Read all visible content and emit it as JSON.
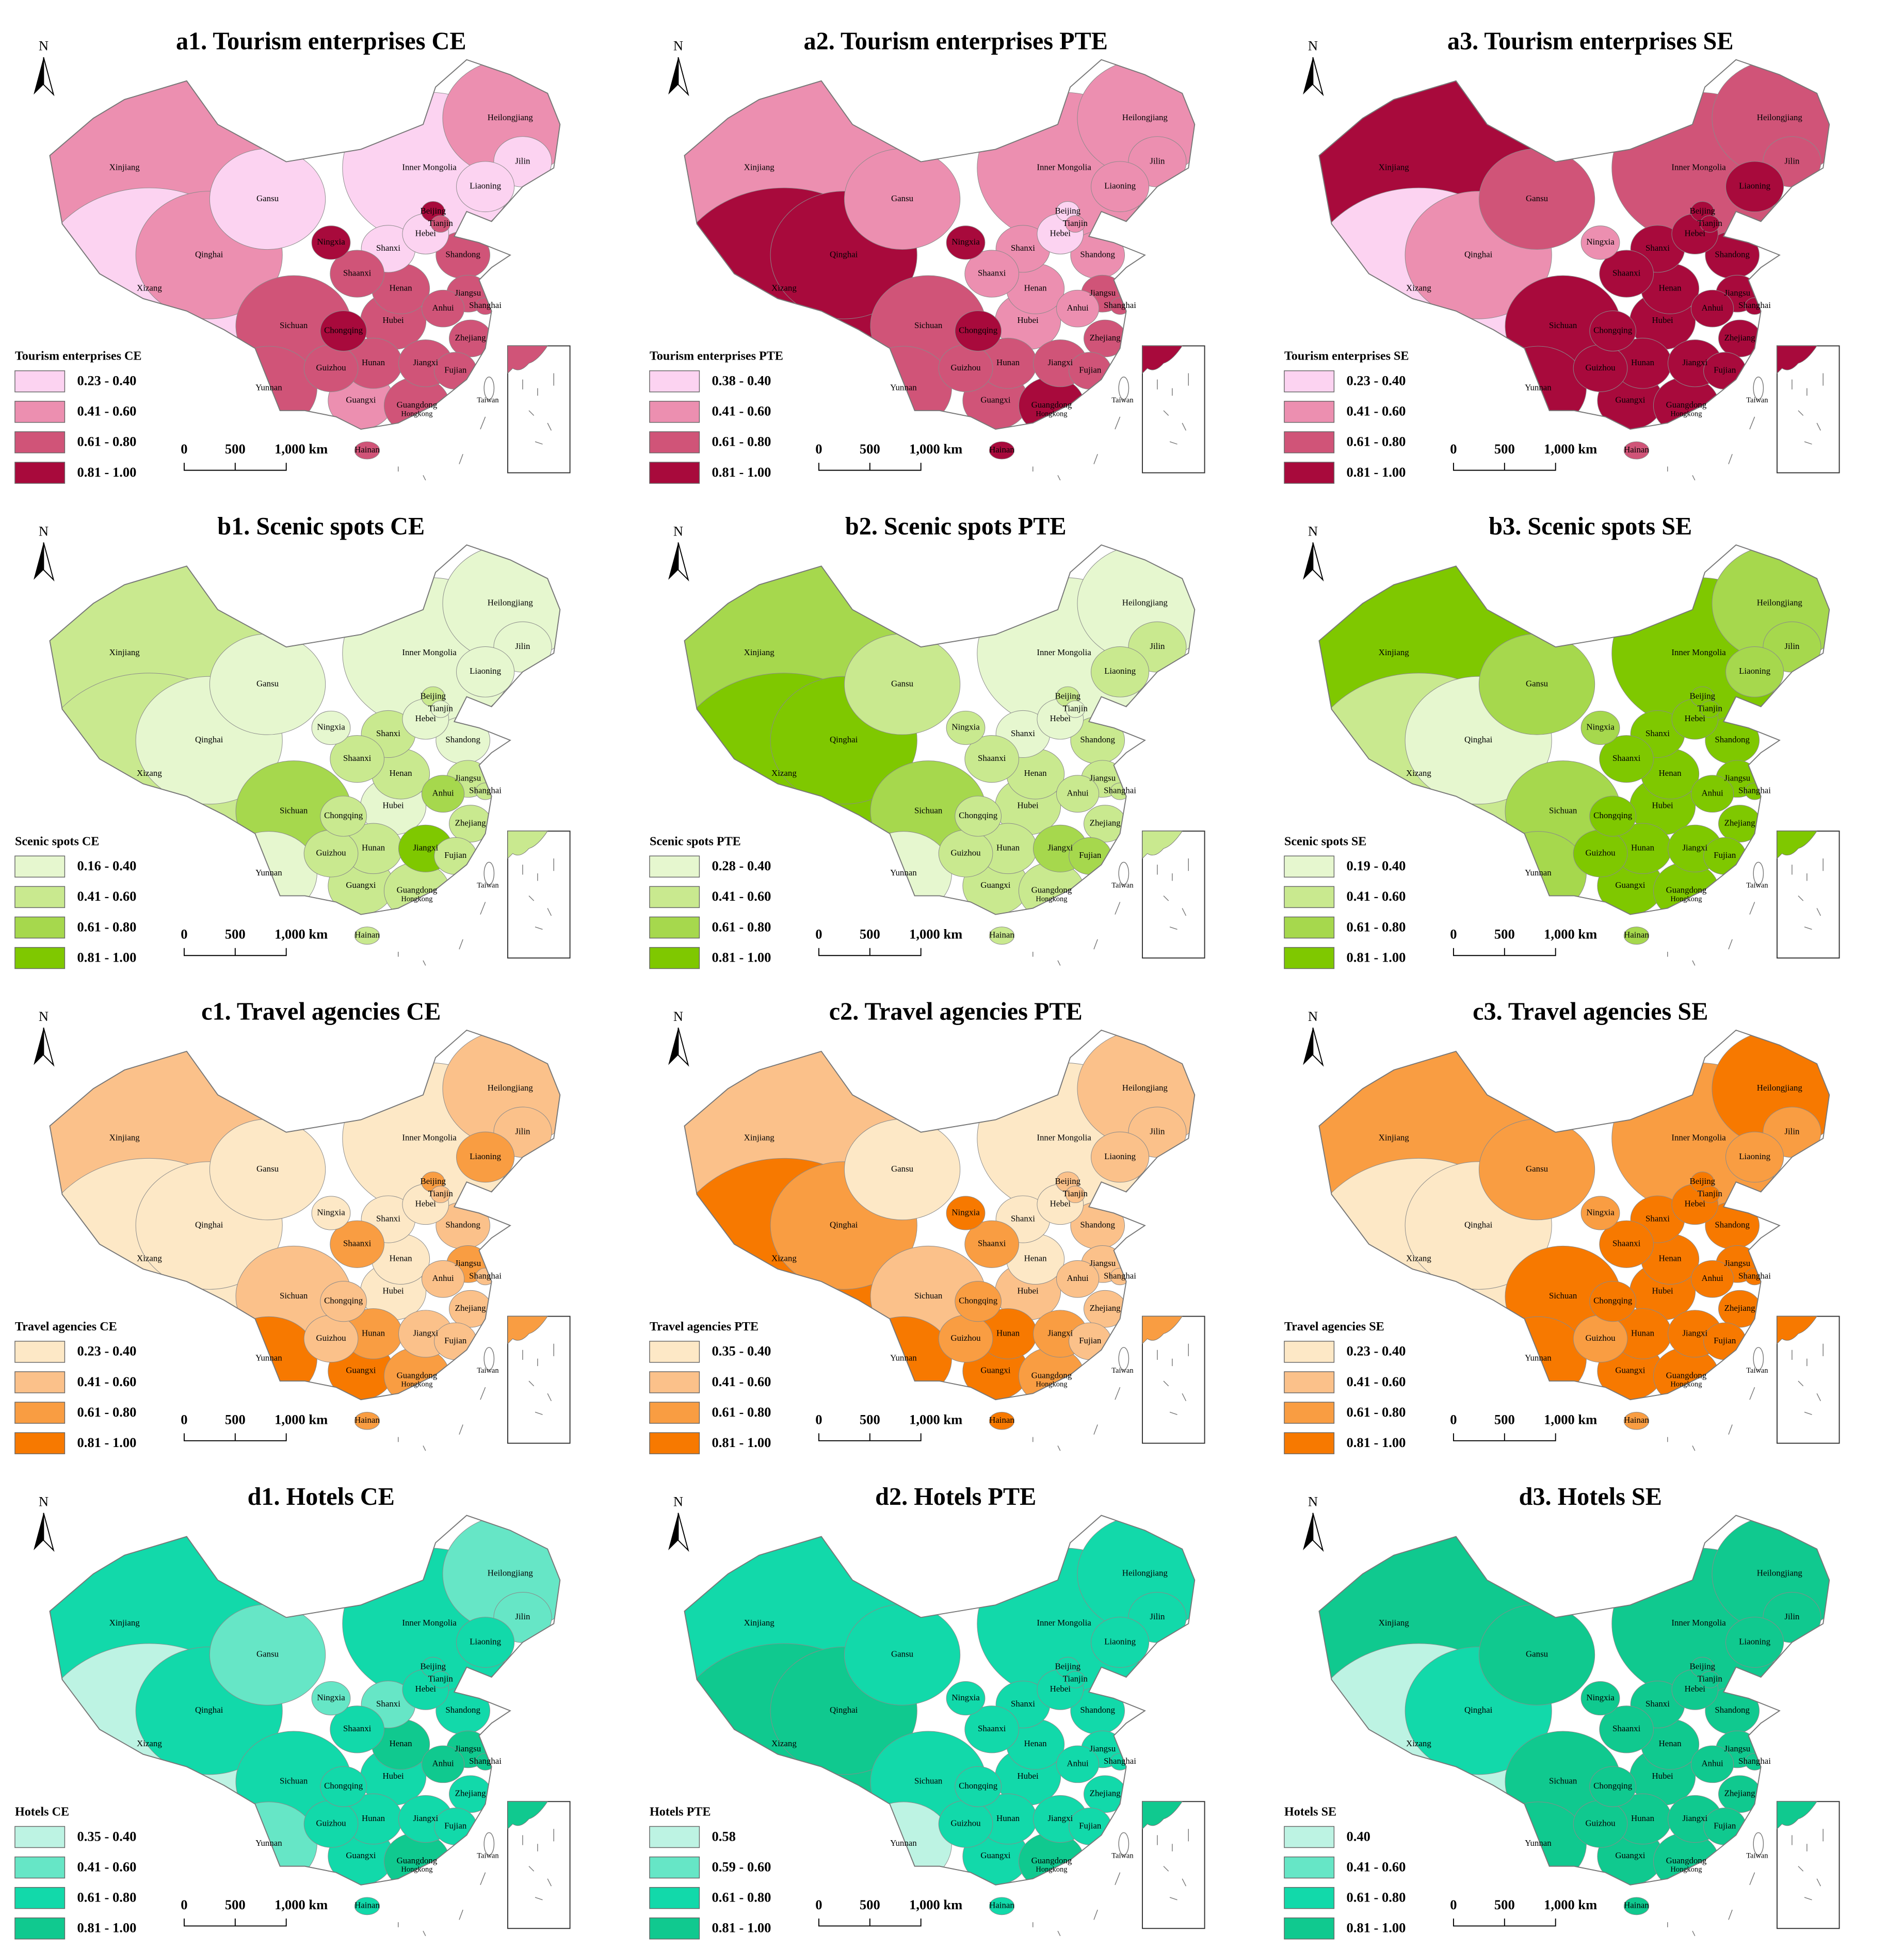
{
  "north": "N",
  "scale_labels": [
    "0",
    "500",
    "1,000 km"
  ],
  "provinces": [
    "Xinjiang",
    "Xizang",
    "Qinghai",
    "Gansu",
    "Inner Mongolia",
    "Heilongjiang",
    "Jilin",
    "Liaoning",
    "Beijing",
    "Tianjin",
    "Hebei",
    "Shanxi",
    "Shandong",
    "Ningxia",
    "Shaanxi",
    "Henan",
    "Jiangsu",
    "Shanghai",
    "Anhui",
    "Hubei",
    "Sichuan",
    "Chongqing",
    "Zhejiang",
    "Guizhou",
    "Hunan",
    "Jiangxi",
    "Fujian",
    "Yunnan",
    "Guangxi",
    "Guangdong",
    "Hainan"
  ],
  "other_labels": [
    "Hongkong",
    "Taiwan"
  ],
  "maps": [
    {
      "title": "a1. Tourism enterprises CE",
      "legend_title": "Tourism enterprises CE",
      "legend": [
        {
          "label": "0.23 - 0.40",
          "color": "#fcd3f1"
        },
        {
          "label": "0.41 - 0.60",
          "color": "#ec8fb0"
        },
        {
          "label": "0.61 - 0.80",
          "color": "#d05478"
        },
        {
          "label": "0.81 - 1.00",
          "color": "#a80a3c"
        }
      ],
      "province_colors": [
        "#ec8fb0",
        "#fcd3f1",
        "#ec8fb0",
        "#fcd3f1",
        "#fcd3f1",
        "#ec8fb0",
        "#fcd3f1",
        "#fcd3f1",
        "#a80a3c",
        "#d05478",
        "#fcd3f1",
        "#fcd3f1",
        "#d05478",
        "#a80a3c",
        "#d05478",
        "#d05478",
        "#d05478",
        "#d05478",
        "#d05478",
        "#d05478",
        "#d05478",
        "#a80a3c",
        "#d05478",
        "#d05478",
        "#d05478",
        "#d05478",
        "#d05478",
        "#d05478",
        "#ec8fb0",
        "#d05478",
        "#d05478"
      ]
    },
    {
      "title": "a2. Tourism enterprises PTE",
      "legend_title": "Tourism enterprises PTE",
      "legend": [
        {
          "label": "0.38 - 0.40",
          "color": "#fcd3f1"
        },
        {
          "label": "0.41 - 0.60",
          "color": "#ec8fb0"
        },
        {
          "label": "0.61 - 0.80",
          "color": "#d05478"
        },
        {
          "label": "0.81 - 1.00",
          "color": "#a80a3c"
        }
      ],
      "province_colors": [
        "#ec8fb0",
        "#a80a3c",
        "#a80a3c",
        "#ec8fb0",
        "#ec8fb0",
        "#ec8fb0",
        "#ec8fb0",
        "#ec8fb0",
        "#fcd3f1",
        "#ec8fb0",
        "#fcd3f1",
        "#ec8fb0",
        "#ec8fb0",
        "#a80a3c",
        "#ec8fb0",
        "#ec8fb0",
        "#d05478",
        "#d05478",
        "#ec8fb0",
        "#ec8fb0",
        "#d05478",
        "#a80a3c",
        "#d05478",
        "#d05478",
        "#d05478",
        "#d05478",
        "#d05478",
        "#d05478",
        "#d05478",
        "#a80a3c",
        "#a80a3c"
      ]
    },
    {
      "title": "a3. Tourism enterprises SE",
      "legend_title": "Tourism enterprises SE",
      "legend": [
        {
          "label": "0.23 - 0.40",
          "color": "#fcd3f1"
        },
        {
          "label": "0.41 - 0.60",
          "color": "#ec8fb0"
        },
        {
          "label": "0.61 - 0.80",
          "color": "#d05478"
        },
        {
          "label": "0.81 - 1.00",
          "color": "#a80a3c"
        }
      ],
      "province_colors": [
        "#a80a3c",
        "#fcd3f1",
        "#ec8fb0",
        "#d05478",
        "#d05478",
        "#d05478",
        "#d05478",
        "#a80a3c",
        "#a80a3c",
        "#a80a3c",
        "#a80a3c",
        "#a80a3c",
        "#a80a3c",
        "#ec8fb0",
        "#a80a3c",
        "#a80a3c",
        "#a80a3c",
        "#a80a3c",
        "#a80a3c",
        "#a80a3c",
        "#a80a3c",
        "#a80a3c",
        "#a80a3c",
        "#a80a3c",
        "#a80a3c",
        "#a80a3c",
        "#a80a3c",
        "#a80a3c",
        "#a80a3c",
        "#a80a3c",
        "#d05478"
      ]
    },
    {
      "title": "b1. Scenic spots CE",
      "legend_title": "Scenic spots  CE",
      "legend": [
        {
          "label": "0.16 - 0.40",
          "color": "#e6f7cf"
        },
        {
          "label": "0.41 - 0.60",
          "color": "#c9e98f"
        },
        {
          "label": "0.61 - 0.80",
          "color": "#a6d84d"
        },
        {
          "label": "0.81 - 1.00",
          "color": "#7fc800"
        }
      ],
      "province_colors": [
        "#c9e98f",
        "#c9e98f",
        "#e6f7cf",
        "#e6f7cf",
        "#e6f7cf",
        "#e6f7cf",
        "#e6f7cf",
        "#e6f7cf",
        "#c9e98f",
        "#e6f7cf",
        "#e6f7cf",
        "#c9e98f",
        "#e6f7cf",
        "#e6f7cf",
        "#c9e98f",
        "#c9e98f",
        "#c9e98f",
        "#c9e98f",
        "#a6d84d",
        "#e6f7cf",
        "#a6d84d",
        "#c9e98f",
        "#c9e98f",
        "#c9e98f",
        "#c9e98f",
        "#7fc800",
        "#c9e98f",
        "#e6f7cf",
        "#c9e98f",
        "#c9e98f",
        "#c9e98f"
      ]
    },
    {
      "title": "b2. Scenic spots PTE",
      "legend_title": "Scenic spots PTE",
      "legend": [
        {
          "label": "0.28 - 0.40",
          "color": "#e6f7cf"
        },
        {
          "label": "0.41 - 0.60",
          "color": "#c9e98f"
        },
        {
          "label": "0.61 - 0.80",
          "color": "#a6d84d"
        },
        {
          "label": "0.81 - 1.00",
          "color": "#7fc800"
        }
      ],
      "province_colors": [
        "#a6d84d",
        "#7fc800",
        "#7fc800",
        "#c9e98f",
        "#e6f7cf",
        "#e6f7cf",
        "#c9e98f",
        "#c9e98f",
        "#c9e98f",
        "#e6f7cf",
        "#e6f7cf",
        "#e6f7cf",
        "#c9e98f",
        "#c9e98f",
        "#c9e98f",
        "#c9e98f",
        "#c9e98f",
        "#c9e98f",
        "#c9e98f",
        "#c9e98f",
        "#a6d84d",
        "#c9e98f",
        "#c9e98f",
        "#c9e98f",
        "#c9e98f",
        "#a6d84d",
        "#a6d84d",
        "#e6f7cf",
        "#c9e98f",
        "#c9e98f",
        "#c9e98f"
      ]
    },
    {
      "title": "b3. Scenic spots SE",
      "legend_title": "Scenic spots SE",
      "legend": [
        {
          "label": "0.19 - 0.40",
          "color": "#e6f7cf"
        },
        {
          "label": "0.41 - 0.60",
          "color": "#c9e98f"
        },
        {
          "label": "0.61 - 0.80",
          "color": "#a6d84d"
        },
        {
          "label": "0.81 - 1.00",
          "color": "#7fc800"
        }
      ],
      "province_colors": [
        "#7fc800",
        "#c9e98f",
        "#e6f7cf",
        "#a6d84d",
        "#7fc800",
        "#a6d84d",
        "#a6d84d",
        "#a6d84d",
        "#7fc800",
        "#7fc800",
        "#7fc800",
        "#7fc800",
        "#7fc800",
        "#a6d84d",
        "#7fc800",
        "#7fc800",
        "#7fc800",
        "#7fc800",
        "#7fc800",
        "#7fc800",
        "#a6d84d",
        "#7fc800",
        "#7fc800",
        "#7fc800",
        "#7fc800",
        "#7fc800",
        "#7fc800",
        "#a6d84d",
        "#7fc800",
        "#7fc800",
        "#a6d84d"
      ]
    },
    {
      "title": "c1. Travel agencies CE",
      "legend_title": "Travel agencies CE",
      "legend": [
        {
          "label": "0.23 - 0.40",
          "color": "#fde8c6"
        },
        {
          "label": "0.41 - 0.60",
          "color": "#fbc18a"
        },
        {
          "label": "0.61 - 0.80",
          "color": "#f99d42"
        },
        {
          "label": "0.81 - 1.00",
          "color": "#f77900"
        }
      ],
      "province_colors": [
        "#fbc18a",
        "#fde8c6",
        "#fde8c6",
        "#fde8c6",
        "#fde8c6",
        "#fbc18a",
        "#fbc18a",
        "#f99d42",
        "#f99d42",
        "#fbc18a",
        "#fde8c6",
        "#fde8c6",
        "#fbc18a",
        "#fde8c6",
        "#f99d42",
        "#fde8c6",
        "#f99d42",
        "#fbc18a",
        "#fbc18a",
        "#fde8c6",
        "#fbc18a",
        "#fbc18a",
        "#fbc18a",
        "#fbc18a",
        "#f99d42",
        "#fbc18a",
        "#fbc18a",
        "#f77900",
        "#f77900",
        "#f99d42",
        "#f99d42"
      ]
    },
    {
      "title": "c2. Travel agencies PTE",
      "legend_title": "Travel agencies PTE",
      "legend": [
        {
          "label": "0.35 - 0.40",
          "color": "#fde8c6"
        },
        {
          "label": "0.41 - 0.60",
          "color": "#fbc18a"
        },
        {
          "label": "0.61 - 0.80",
          "color": "#f99d42"
        },
        {
          "label": "0.81 - 1.00",
          "color": "#f77900"
        }
      ],
      "province_colors": [
        "#fbc18a",
        "#f77900",
        "#f99d42",
        "#fde8c6",
        "#fde8c6",
        "#fbc18a",
        "#fbc18a",
        "#fbc18a",
        "#fbc18a",
        "#fbc18a",
        "#fde8c6",
        "#fde8c6",
        "#fbc18a",
        "#f77900",
        "#f99d42",
        "#fde8c6",
        "#fbc18a",
        "#fbc18a",
        "#fbc18a",
        "#fbc18a",
        "#fbc18a",
        "#f99d42",
        "#fbc18a",
        "#f99d42",
        "#f77900",
        "#f99d42",
        "#fbc18a",
        "#f77900",
        "#f77900",
        "#f99d42",
        "#f77900"
      ]
    },
    {
      "title": "c3. Travel agencies SE",
      "legend_title": "Travel agencies SE",
      "legend": [
        {
          "label": "0.23 - 0.40",
          "color": "#fde8c6"
        },
        {
          "label": "0.41 - 0.60",
          "color": "#fbc18a"
        },
        {
          "label": "0.61 - 0.80",
          "color": "#f99d42"
        },
        {
          "label": "0.81 - 1.00",
          "color": "#f77900"
        }
      ],
      "province_colors": [
        "#f99d42",
        "#fde8c6",
        "#fde8c6",
        "#f99d42",
        "#f99d42",
        "#f77900",
        "#f99d42",
        "#f99d42",
        "#f77900",
        "#f77900",
        "#f77900",
        "#f77900",
        "#f77900",
        "#f99d42",
        "#f77900",
        "#f77900",
        "#f77900",
        "#f77900",
        "#f77900",
        "#f77900",
        "#f77900",
        "#f77900",
        "#f77900",
        "#f99d42",
        "#f77900",
        "#f77900",
        "#f77900",
        "#f77900",
        "#f77900",
        "#f77900",
        "#f99d42"
      ]
    },
    {
      "title": "d1. Hotels CE",
      "legend_title": "Hotels CE",
      "legend": [
        {
          "label": "0.35 - 0.40",
          "color": "#bdf3e3"
        },
        {
          "label": "0.41 - 0.60",
          "color": "#66e6c6"
        },
        {
          "label": "0.61 - 0.80",
          "color": "#12d9aa"
        },
        {
          "label": "0.81 - 1.00",
          "color": "#10c98f"
        }
      ],
      "province_colors": [
        "#12d9aa",
        "#bdf3e3",
        "#12d9aa",
        "#66e6c6",
        "#12d9aa",
        "#66e6c6",
        "#66e6c6",
        "#12d9aa",
        "#12d9aa",
        "#12d9aa",
        "#12d9aa",
        "#66e6c6",
        "#12d9aa",
        "#66e6c6",
        "#12d9aa",
        "#10c98f",
        "#10c98f",
        "#10c98f",
        "#10c98f",
        "#12d9aa",
        "#12d9aa",
        "#12d9aa",
        "#12d9aa",
        "#12d9aa",
        "#12d9aa",
        "#12d9aa",
        "#12d9aa",
        "#66e6c6",
        "#12d9aa",
        "#10c98f",
        "#12d9aa"
      ]
    },
    {
      "title": "d2. Hotels PTE",
      "legend_title": "Hotels PTE",
      "legend": [
        {
          "label": "0.58",
          "color": "#bdf3e3"
        },
        {
          "label": "0.59 - 0.60",
          "color": "#66e6c6"
        },
        {
          "label": "0.61 - 0.80",
          "color": "#12d9aa"
        },
        {
          "label": "0.81 - 1.00",
          "color": "#10c98f"
        }
      ],
      "province_colors": [
        "#12d9aa",
        "#10c98f",
        "#10c98f",
        "#12d9aa",
        "#12d9aa",
        "#12d9aa",
        "#12d9aa",
        "#12d9aa",
        "#12d9aa",
        "#12d9aa",
        "#12d9aa",
        "#12d9aa",
        "#12d9aa",
        "#12d9aa",
        "#12d9aa",
        "#12d9aa",
        "#12d9aa",
        "#12d9aa",
        "#12d9aa",
        "#12d9aa",
        "#12d9aa",
        "#12d9aa",
        "#12d9aa",
        "#12d9aa",
        "#12d9aa",
        "#12d9aa",
        "#12d9aa",
        "#bdf3e3",
        "#12d9aa",
        "#10c98f",
        "#12d9aa"
      ]
    },
    {
      "title": "d3. Hotels SE",
      "legend_title": "Hotels SE",
      "legend": [
        {
          "label": "0.40",
          "color": "#bdf3e3"
        },
        {
          "label": "0.41 - 0.60",
          "color": "#66e6c6"
        },
        {
          "label": "0.61 - 0.80",
          "color": "#12d9aa"
        },
        {
          "label": "0.81 - 1.00",
          "color": "#10c98f"
        }
      ],
      "province_colors": [
        "#10c98f",
        "#bdf3e3",
        "#12d9aa",
        "#10c98f",
        "#10c98f",
        "#10c98f",
        "#10c98f",
        "#10c98f",
        "#10c98f",
        "#10c98f",
        "#10c98f",
        "#10c98f",
        "#10c98f",
        "#10c98f",
        "#10c98f",
        "#10c98f",
        "#10c98f",
        "#10c98f",
        "#10c98f",
        "#10c98f",
        "#10c98f",
        "#10c98f",
        "#10c98f",
        "#10c98f",
        "#10c98f",
        "#10c98f",
        "#10c98f",
        "#10c98f",
        "#10c98f",
        "#10c98f",
        "#10c98f"
      ]
    }
  ]
}
